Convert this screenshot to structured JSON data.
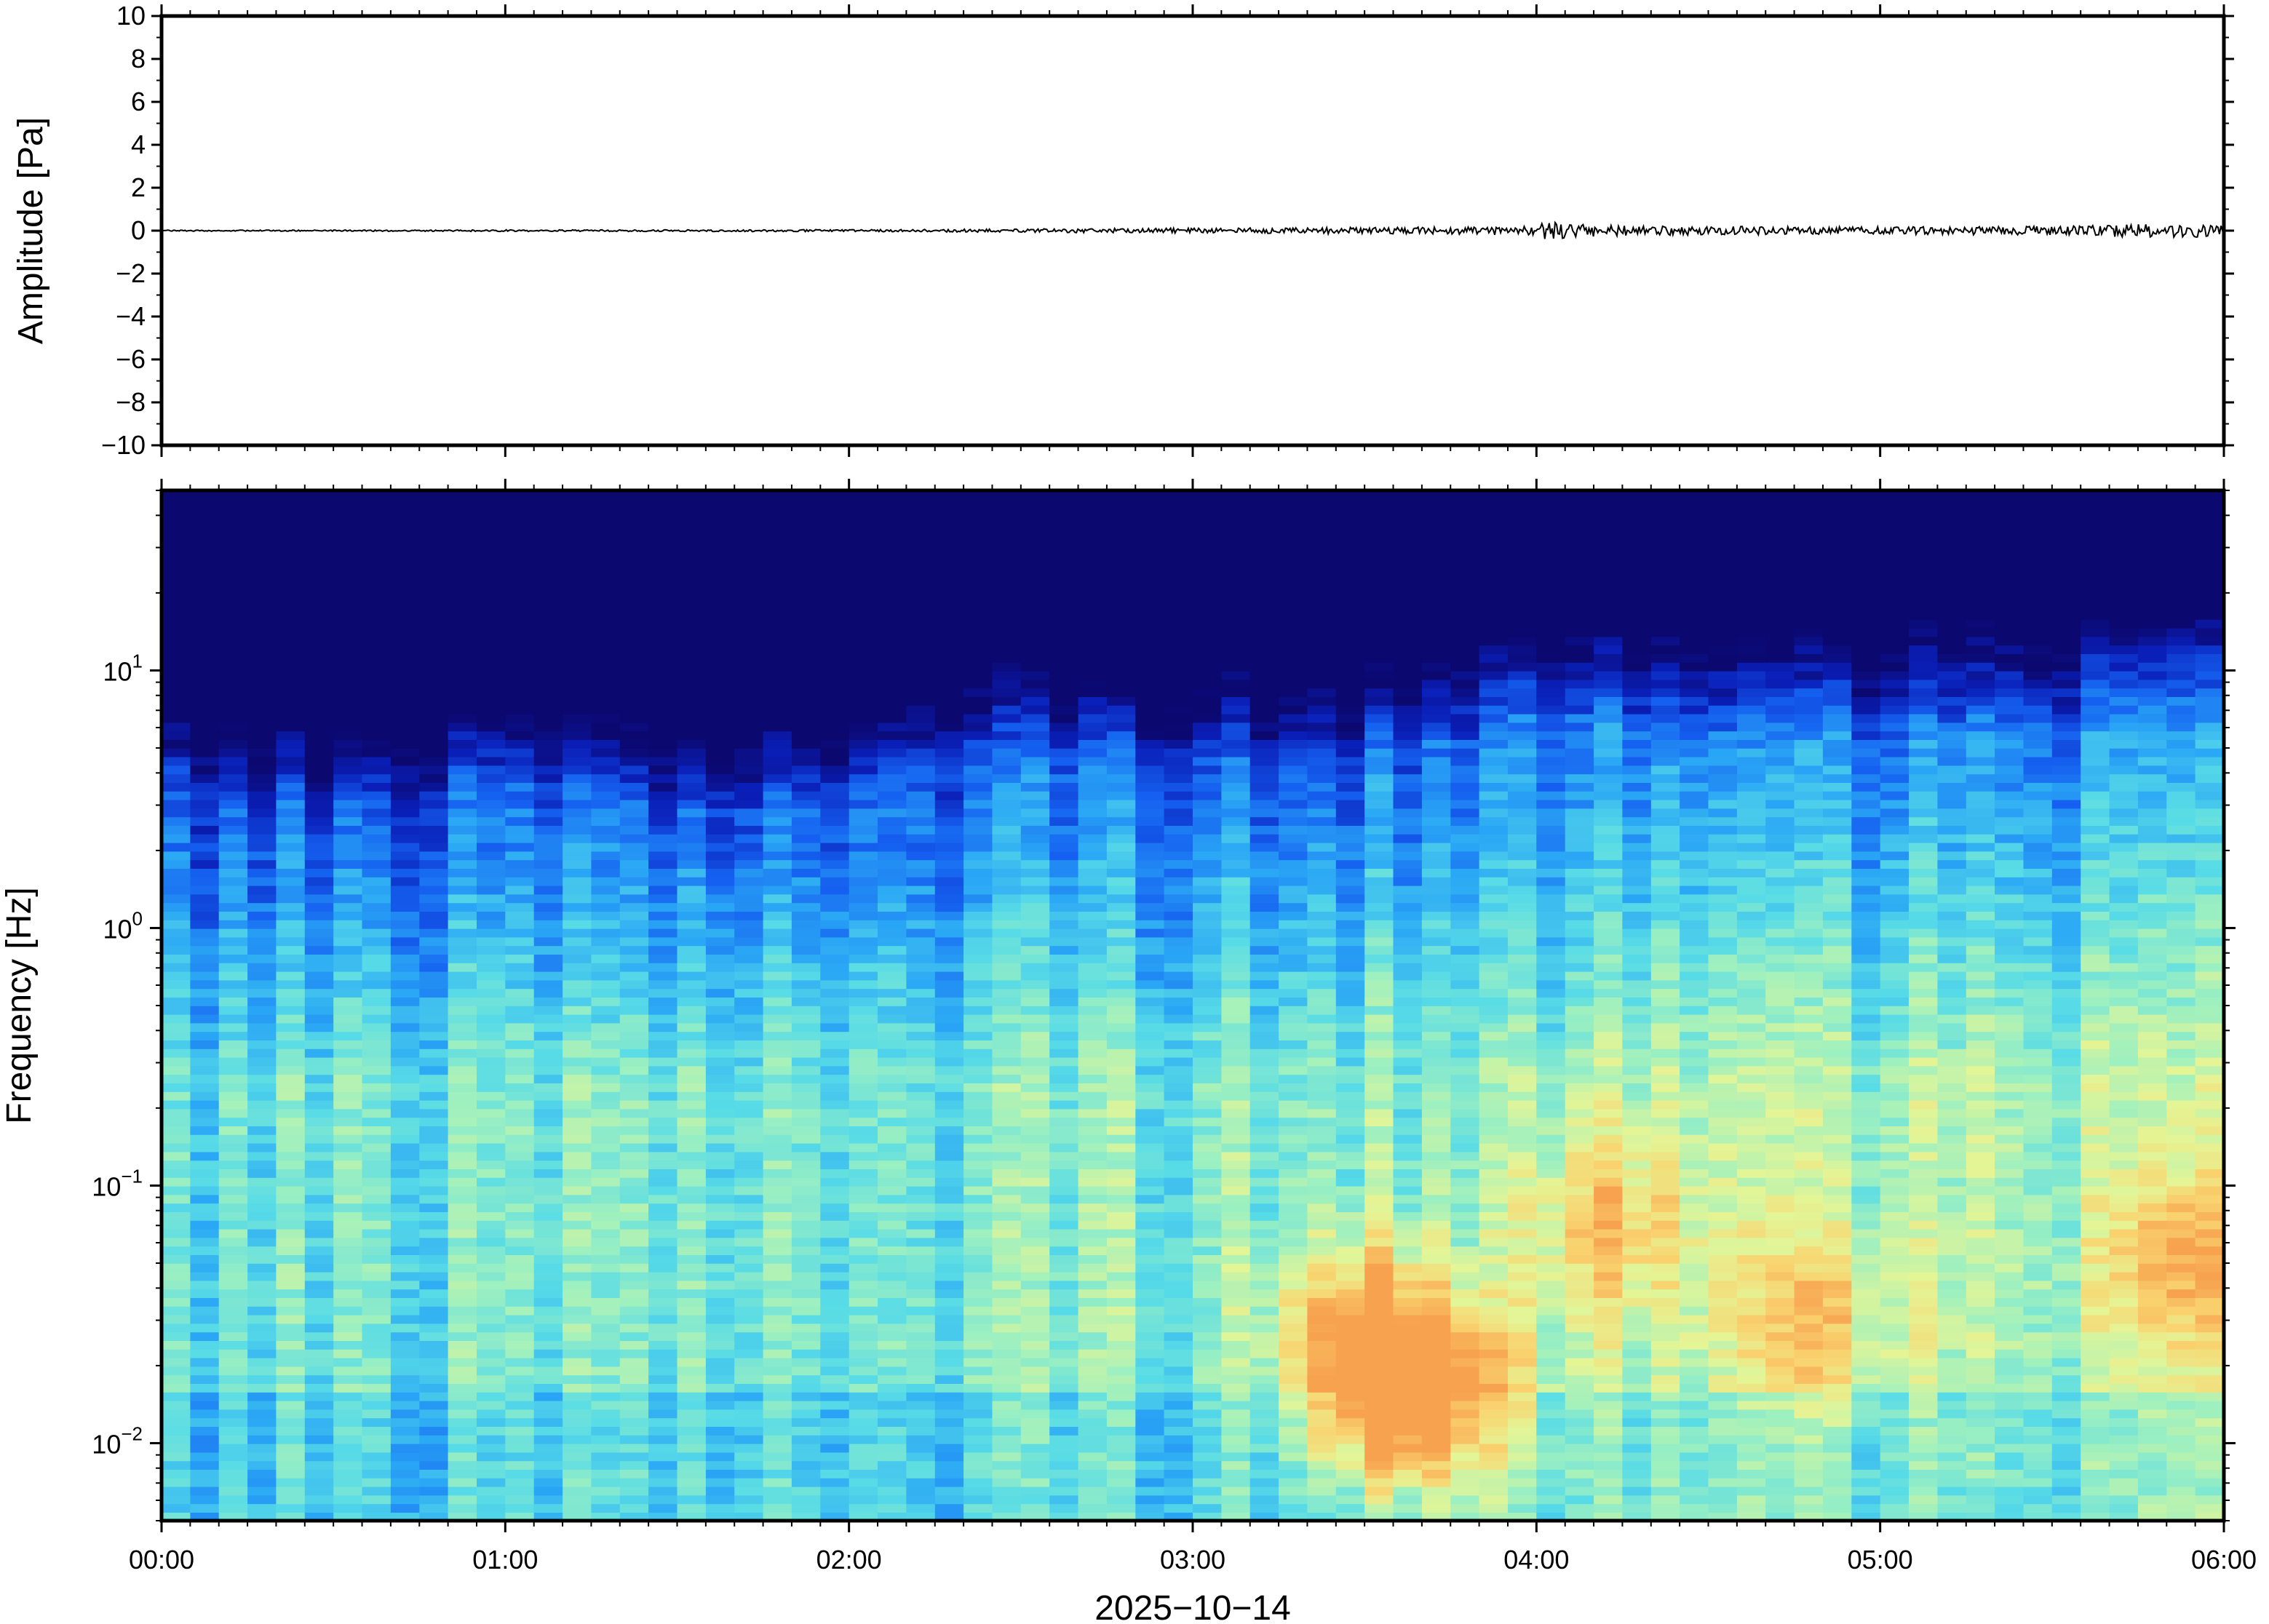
{
  "chart_data": [
    {
      "type": "line",
      "panel": "waveform",
      "ylabel": "Amplitude [Pa]",
      "ylim": [
        -10,
        10
      ],
      "yticks": [
        10,
        8,
        6,
        4,
        2,
        0,
        -2,
        -4,
        -6,
        -8,
        -10
      ],
      "ytick_labels": [
        "10",
        "8",
        "6",
        "4",
        "2",
        "0",
        "−2",
        "−4",
        "−6",
        "−8",
        "−10"
      ],
      "xlim": [
        "00:00",
        "06:00"
      ],
      "series_color": "#000000",
      "baseline": 0,
      "envelope": [
        {
          "t": 0.0,
          "a": 0.03
        },
        {
          "t": 0.5,
          "a": 0.03
        },
        {
          "t": 1.0,
          "a": 0.04
        },
        {
          "t": 1.5,
          "a": 0.04
        },
        {
          "t": 2.0,
          "a": 0.05
        },
        {
          "t": 2.5,
          "a": 0.08
        },
        {
          "t": 3.0,
          "a": 0.12
        },
        {
          "t": 3.5,
          "a": 0.16
        },
        {
          "t": 3.8,
          "a": 0.18
        },
        {
          "t": 4.0,
          "a": 0.22
        },
        {
          "t": 4.05,
          "a": 0.6
        },
        {
          "t": 4.1,
          "a": 0.3
        },
        {
          "t": 4.5,
          "a": 0.2
        },
        {
          "t": 5.0,
          "a": 0.18
        },
        {
          "t": 5.5,
          "a": 0.2
        },
        {
          "t": 5.7,
          "a": 0.3
        },
        {
          "t": 6.0,
          "a": 0.3
        }
      ]
    },
    {
      "type": "heatmap",
      "panel": "spectrogram",
      "ylabel": "Frequency [Hz]",
      "yscale": "log",
      "ylim_hz": [
        0.005,
        50
      ],
      "yticks": [
        {
          "base": "10",
          "exp": "1",
          "value": 10
        },
        {
          "base": "10",
          "exp": "0",
          "value": 1
        },
        {
          "base": "10",
          "exp": "−1",
          "value": 0.1
        },
        {
          "base": "10",
          "exp": "−2",
          "value": 0.01
        }
      ],
      "xlabel": "2025−10−14",
      "xticks": [
        "00:00",
        "01:00",
        "02:00",
        "03:00",
        "04:00",
        "05:00",
        "06:00"
      ],
      "xlim": [
        "00:00",
        "06:00"
      ],
      "colormap": [
        "#0b0870",
        "#0a1fb8",
        "#1560f0",
        "#2aa7f5",
        "#57dbe7",
        "#9df0c0",
        "#e4f596",
        "#f9d36f",
        "#f7a24e"
      ],
      "background_color": "#0b0870",
      "cutoff_hz_profile": [
        {
          "t": 0.0,
          "f": 8
        },
        {
          "t": 0.5,
          "f": 6
        },
        {
          "t": 1.0,
          "f": 8
        },
        {
          "t": 1.5,
          "f": 6
        },
        {
          "t": 2.0,
          "f": 7
        },
        {
          "t": 2.3,
          "f": 10
        },
        {
          "t": 3.0,
          "f": 9
        },
        {
          "t": 3.5,
          "f": 9
        },
        {
          "t": 4.0,
          "f": 14
        },
        {
          "t": 4.5,
          "f": 11
        },
        {
          "t": 5.0,
          "f": 12
        },
        {
          "t": 5.5,
          "f": 13
        },
        {
          "t": 6.0,
          "f": 14
        }
      ],
      "hotspots": [
        {
          "t": 3.55,
          "f_hz": 0.015,
          "intensity": 1.0
        },
        {
          "t": 3.75,
          "f_hz": 0.014,
          "intensity": 0.85
        },
        {
          "t": 3.5,
          "f_hz": 0.03,
          "intensity": 0.85
        },
        {
          "t": 4.2,
          "f_hz": 0.07,
          "intensity": 0.7
        },
        {
          "t": 5.9,
          "f_hz": 0.05,
          "intensity": 0.7
        },
        {
          "t": 4.8,
          "f_hz": 0.03,
          "intensity": 0.6
        }
      ]
    }
  ]
}
